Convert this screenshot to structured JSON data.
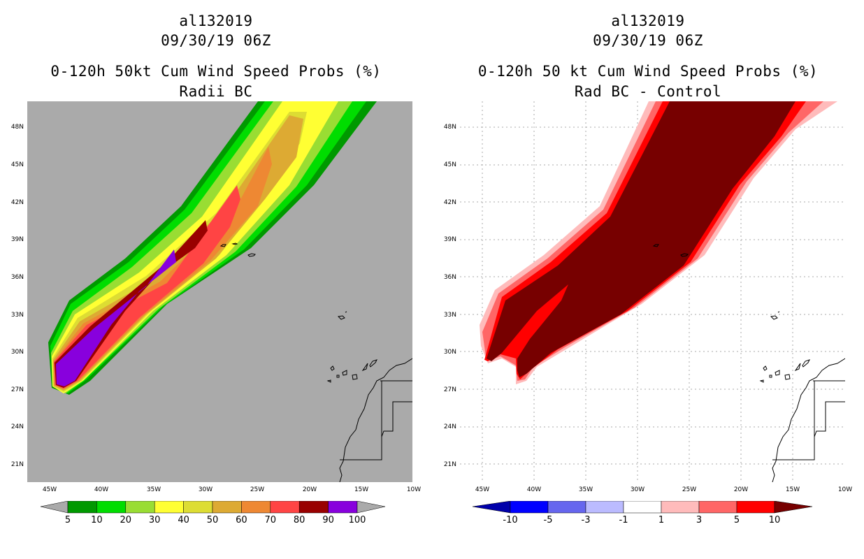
{
  "left_panel": {
    "storm_id": "al132019",
    "datetime": "09/30/19 06Z",
    "title": "0-120h 50kt Cum Wind Speed Probs (%)",
    "subtitle": "Radii BC",
    "colorbar": {
      "labels": [
        "5",
        "10",
        "20",
        "30",
        "40",
        "50",
        "60",
        "70",
        "80",
        "90",
        "100"
      ],
      "colors": [
        "#009900",
        "#00dd00",
        "#99dd33",
        "#ffff33",
        "#dddd33",
        "#ddaa33",
        "#ee8833",
        "#ff4444",
        "#990000",
        "#8800dd"
      ]
    }
  },
  "right_panel": {
    "storm_id": "al132019",
    "datetime": "09/30/19 06Z",
    "title": "0-120h 50 kt Cum Wind Speed Probs (%)",
    "subtitle": "Rad BC - Control",
    "colorbar": {
      "labels": [
        "-10",
        "-5",
        "-3",
        "-1",
        "1",
        "3",
        "5",
        "10"
      ],
      "colors": [
        "#0000aa",
        "#0000ff",
        "#6666ee",
        "#bbbbff",
        "#ffffff",
        "#ffbbbb",
        "#ff6666",
        "#ff0000",
        "#770000"
      ]
    }
  },
  "axes": {
    "lat_labels": [
      "48N",
      "45N",
      "42N",
      "39N",
      "36N",
      "33N",
      "30N",
      "27N",
      "24N",
      "21N"
    ],
    "lon_labels": [
      "45W",
      "40W",
      "35W",
      "30W",
      "25W",
      "20W",
      "15W",
      "10W"
    ]
  },
  "colors": {
    "background_gray": "#aaaaaa",
    "diff_dark": "#770000",
    "diff_red": "#ff0000",
    "diff_pink": "#ffbbbb",
    "diff_mid": "#ff6666"
  }
}
